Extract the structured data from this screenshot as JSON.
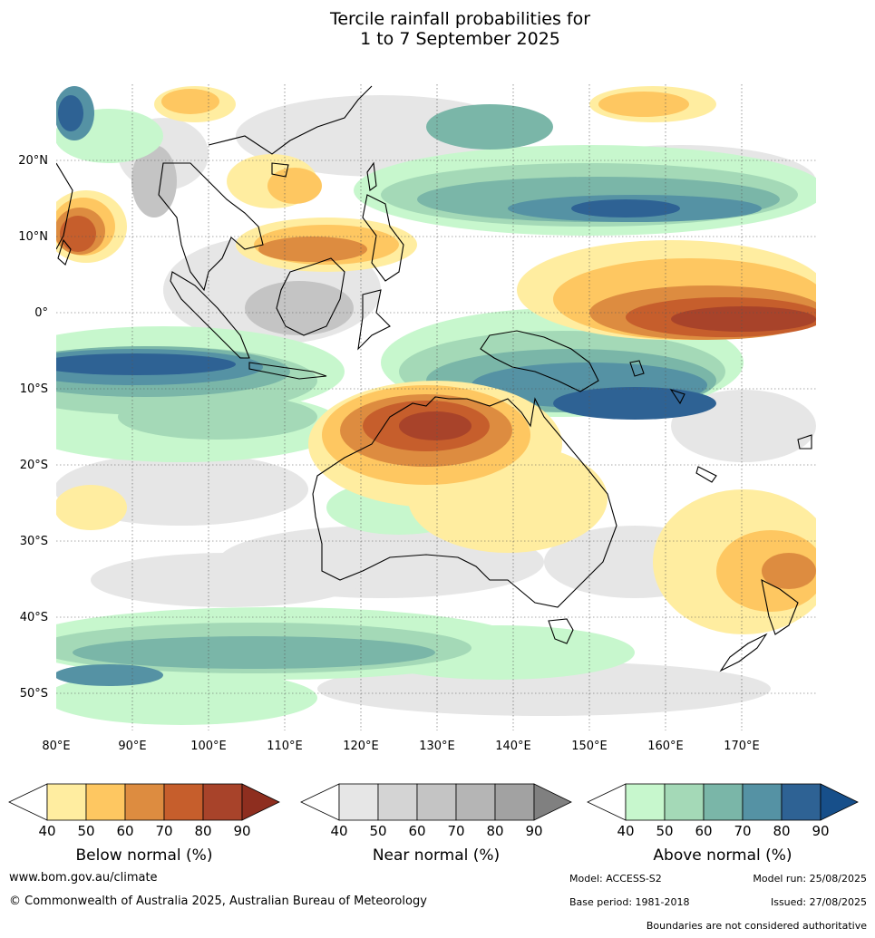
{
  "title_line1": "Tercile rainfall probabilities for",
  "title_line2": "1 to 7 September 2025",
  "map": {
    "lon_labels": [
      "80°E",
      "90°E",
      "100°E",
      "110°E",
      "120°E",
      "130°E",
      "140°E",
      "150°E",
      "160°E",
      "170°E"
    ],
    "lat_labels": [
      "20°N",
      "10°N",
      "0°",
      "10°S",
      "20°S",
      "30°S",
      "40°S",
      "50°S"
    ],
    "colors": {
      "below": [
        "#ffeda0",
        "#fec761",
        "#dd8c40",
        "#c65e2c",
        "#a8432a",
        "#8e2e1f"
      ],
      "near": [
        "#e6e6e6",
        "#d4d4d4",
        "#c4c4c4",
        "#b5b5b5",
        "#a2a2a2",
        "#808080"
      ],
      "above": [
        "#c7f7cd",
        "#a4d9b7",
        "#7ab6a8",
        "#5592a4",
        "#2e6294",
        "#174f8a"
      ],
      "ocean_white": "#ffffff",
      "coastline": "#000000"
    }
  },
  "colorbars": [
    {
      "label": "Below normal (%)",
      "ticks": [
        "40",
        "50",
        "60",
        "70",
        "80",
        "90"
      ]
    },
    {
      "label": "Near normal (%)",
      "ticks": [
        "40",
        "50",
        "60",
        "70",
        "80",
        "90"
      ]
    },
    {
      "label": "Above normal (%)",
      "ticks": [
        "40",
        "50",
        "60",
        "70",
        "80",
        "90"
      ]
    }
  ],
  "footer": {
    "website": "www.bom.gov.au/climate",
    "copyright": "© Commonwealth of Australia 2025, Australian Bureau of Meteorology",
    "model": "Model: ACCESS-S2",
    "model_run": "Model run: 25/08/2025",
    "base_period": "Base period: 1981-2018",
    "issued": "Issued: 27/08/2025",
    "disclaimer": "Boundaries are not considered authoritative"
  }
}
